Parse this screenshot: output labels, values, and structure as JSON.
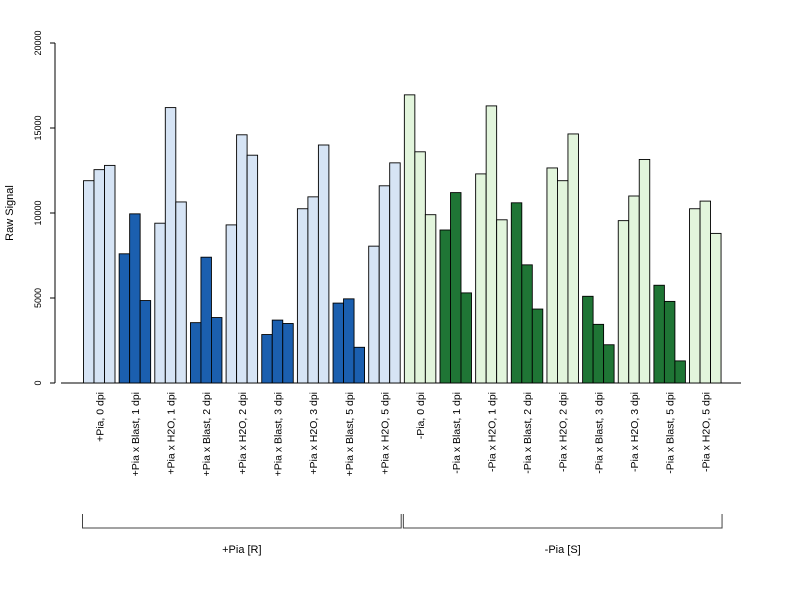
{
  "chart_data": {
    "type": "bar",
    "title": "",
    "xlabel": "",
    "ylabel": "Raw Signal",
    "ylim": [
      0,
      20000
    ],
    "yticks": [
      0,
      5000,
      10000,
      15000,
      20000
    ],
    "yticklabels": [
      "0",
      "5000",
      "10000",
      "15000",
      "20000"
    ],
    "grid": false,
    "categories": [
      "+Pia, 0 dpi",
      "+Pia x Blast, 1 dpi",
      "+Pia x H2O, 1 dpi",
      "+Pia x Blast, 2 dpi",
      "+Pia x H2O, 2 dpi",
      "+Pia x Blast, 3 dpi",
      "+Pia x H2O, 3 dpi",
      "+Pia x Blast, 5 dpi",
      "+Pia x H2O, 5 dpi",
      "-Pia, 0 dpi",
      "-Pia x Blast, 1 dpi",
      "-Pia x H2O, 1 dpi",
      "-Pia x Blast, 2 dpi",
      "-Pia x H2O, 2 dpi",
      "-Pia x Blast, 3 dpi",
      "-Pia x H2O, 3 dpi",
      "-Pia x Blast, 5 dpi",
      "-Pia x H2O, 5 dpi"
    ],
    "replicates": [
      [
        11900,
        12550,
        12800
      ],
      [
        7600,
        9950,
        4850
      ],
      [
        9400,
        16200,
        10650
      ],
      [
        3550,
        7400,
        3850
      ],
      [
        9300,
        14600,
        13400
      ],
      [
        2850,
        3700,
        3500
      ],
      [
        10250,
        10950,
        14000
      ],
      [
        4700,
        4950,
        2100
      ],
      [
        8050,
        11600,
        12950
      ],
      [
        16950,
        13600,
        9900
      ],
      [
        9000,
        11200,
        5300
      ],
      [
        12300,
        16300,
        9600
      ],
      [
        10600,
        6950,
        4350
      ],
      [
        12650,
        11900,
        14650
      ],
      [
        5100,
        3450,
        2250
      ],
      [
        9550,
        11000,
        13150
      ],
      [
        5750,
        4800,
        1300
      ],
      [
        10250,
        10700,
        8800
      ]
    ],
    "colors": [
      "#d6e4f5",
      "#1b5faf",
      "#d6e4f5",
      "#1b5faf",
      "#d6e4f5",
      "#1b5faf",
      "#d6e4f5",
      "#1b5faf",
      "#d6e4f5",
      "#e2f5dc",
      "#1f7535",
      "#e2f5dc",
      "#1f7535",
      "#e2f5dc",
      "#1f7535",
      "#e2f5dc",
      "#1f7535",
      "#e2f5dc"
    ],
    "groups": [
      {
        "label": "+Pia [R]",
        "from": 0,
        "to": 8
      },
      {
        "label": "-Pia [S]",
        "from": 9,
        "to": 17
      }
    ]
  }
}
